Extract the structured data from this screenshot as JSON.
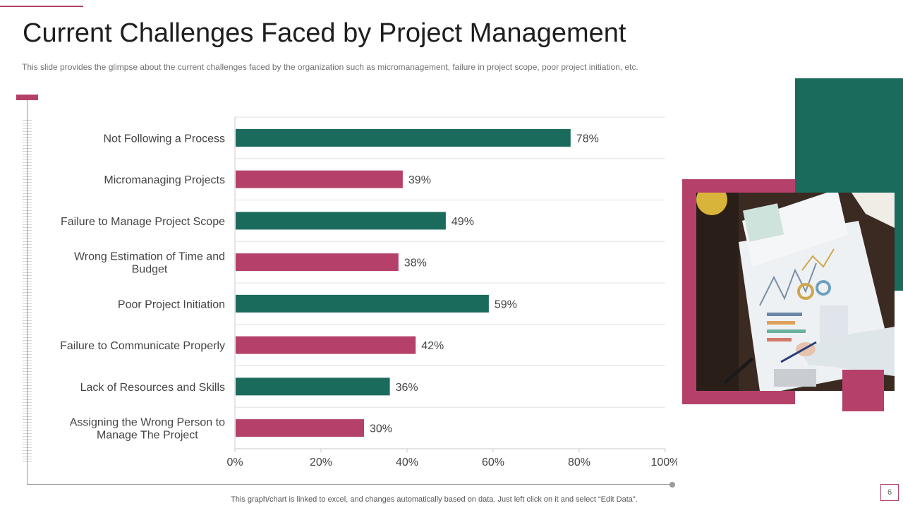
{
  "slide": {
    "title": "Current Challenges Faced by Project Management",
    "subtitle": "This slide provides  the glimpse about the current challenges faced by the organization  such as micromanagement,  failure  in project scope, poor project initiation, etc.",
    "footnote": "This graph/chart is linked to excel,  and changes automatically based on data. Just left click on it and select “Edit Data”.",
    "page_number": "6"
  },
  "colors": {
    "green": "#1b6b5d",
    "pink": "#b5416b"
  },
  "chart_data": {
    "type": "bar",
    "orientation": "horizontal",
    "categories": [
      [
        "Not Following a Process"
      ],
      [
        "Micromanaging Projects"
      ],
      [
        "Failure to Manage Project Scope"
      ],
      [
        "Wrong Estimation of Time and",
        "Budget"
      ],
      [
        "Poor Project Initiation"
      ],
      [
        "Failure to Communicate Properly"
      ],
      [
        "Lack of Resources and Skills"
      ],
      [
        "Assigning the Wrong Person to",
        "Manage The Project"
      ]
    ],
    "values": [
      78,
      39,
      49,
      38,
      59,
      42,
      36,
      30
    ],
    "value_labels": [
      "78%",
      "39%",
      "49%",
      "38%",
      "59%",
      "42%",
      "36%",
      "30%"
    ],
    "bar_colors": [
      "green",
      "pink",
      "green",
      "pink",
      "green",
      "pink",
      "green",
      "pink"
    ],
    "xlim": [
      0,
      100
    ],
    "xticks": [
      0,
      20,
      40,
      60,
      80,
      100
    ],
    "xtick_labels": [
      "0%",
      "20%",
      "40%",
      "60%",
      "80%",
      "100%"
    ],
    "grid": true,
    "legend": "none"
  }
}
